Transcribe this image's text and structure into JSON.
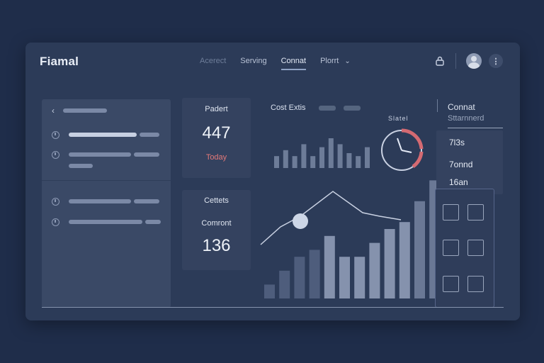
{
  "header": {
    "brand": "Fiamal",
    "nav": [
      {
        "label": "Acerect",
        "state": "dim"
      },
      {
        "label": "Serving",
        "state": "normal"
      },
      {
        "label": "Connat",
        "state": "active"
      },
      {
        "label": "Plorrt",
        "state": "normal"
      }
    ]
  },
  "cards": {
    "top": {
      "label": "Padert",
      "value": "447",
      "note": "Today"
    },
    "bottom": {
      "label1": "Cettets",
      "label2": "Comront",
      "value": "136"
    }
  },
  "chart": {
    "title": "Cost Extis",
    "gauge_label": "Slatel"
  },
  "chart_data": {
    "type": "bar",
    "small_bars": [
      4,
      6,
      4,
      8,
      4,
      7,
      10,
      8,
      5,
      4,
      7
    ],
    "bars": [
      2,
      4,
      6,
      7,
      9,
      6,
      6,
      8,
      10,
      11,
      14,
      17
    ],
    "line": [
      3.5,
      6,
      7.5,
      11,
      8,
      7.5,
      7
    ]
  },
  "right_panel": {
    "title": "Connat",
    "subtitle": "Sttarnnerd",
    "items": [
      "7l3s",
      "7onnd",
      "16an"
    ]
  },
  "colors": {
    "background": "#1f2d4a",
    "window": "#2c3b58",
    "accent_red": "#e27878"
  }
}
